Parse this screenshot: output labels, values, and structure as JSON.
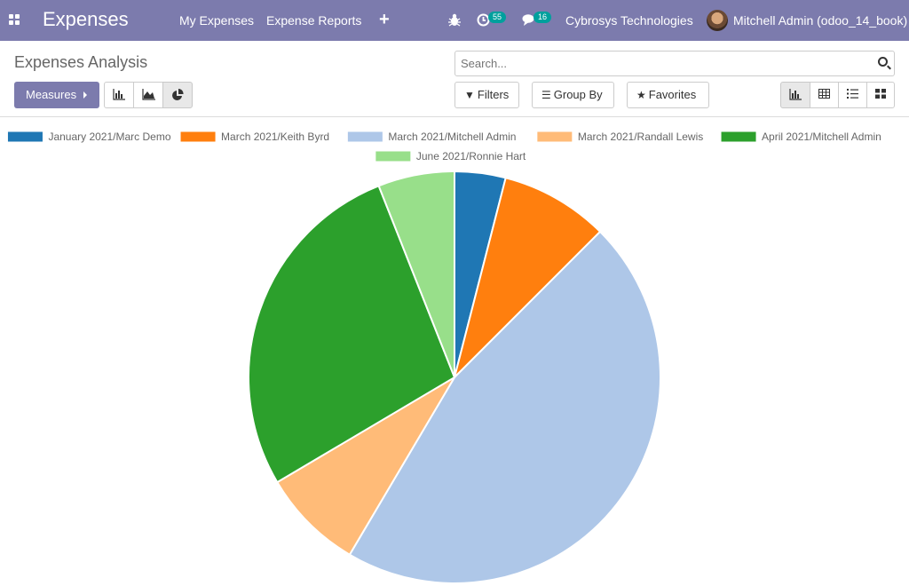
{
  "app": {
    "title": "Expenses"
  },
  "nav": {
    "items": [
      "My Expenses",
      "Expense Reports"
    ],
    "new_label": "+"
  },
  "systray": {
    "activity_count": "55",
    "message_count": "16",
    "company": "Cybrosys Technologies",
    "user": "Mitchell Admin (odoo_14_book)"
  },
  "page": {
    "title": "Expenses Analysis"
  },
  "search": {
    "placeholder": "Search..."
  },
  "toolbar": {
    "measures_label": "Measures",
    "filters_label": "Filters",
    "groupby_label": "Group By",
    "favorites_label": "Favorites"
  },
  "icons": [
    "apps-icon",
    "bug-icon",
    "activity-icon",
    "messages-icon",
    "search-icon",
    "bar-chart-icon",
    "line-chart-icon",
    "pie-chart-icon",
    "filter-icon",
    "group-by-icon",
    "star-icon",
    "graph-view-icon",
    "pivot-view-icon",
    "list-view-icon",
    "kanban-view-icon"
  ],
  "chart_data": {
    "type": "pie",
    "legend_position": "top",
    "labels": [
      "January 2021/Marc Demo",
      "March 2021/Keith Byrd",
      "March 2021/Mitchell Admin",
      "March 2021/Randall Lewis",
      "April 2021/Mitchell Admin",
      "June 2021/Ronnie Hart"
    ],
    "values": [
      4,
      8.5,
      46,
      8,
      27.5,
      6
    ],
    "colors": [
      "#1f77b4",
      "#ff7f0e",
      "#aec7e8",
      "#ffbb78",
      "#2ca02c",
      "#98df8a"
    ]
  }
}
